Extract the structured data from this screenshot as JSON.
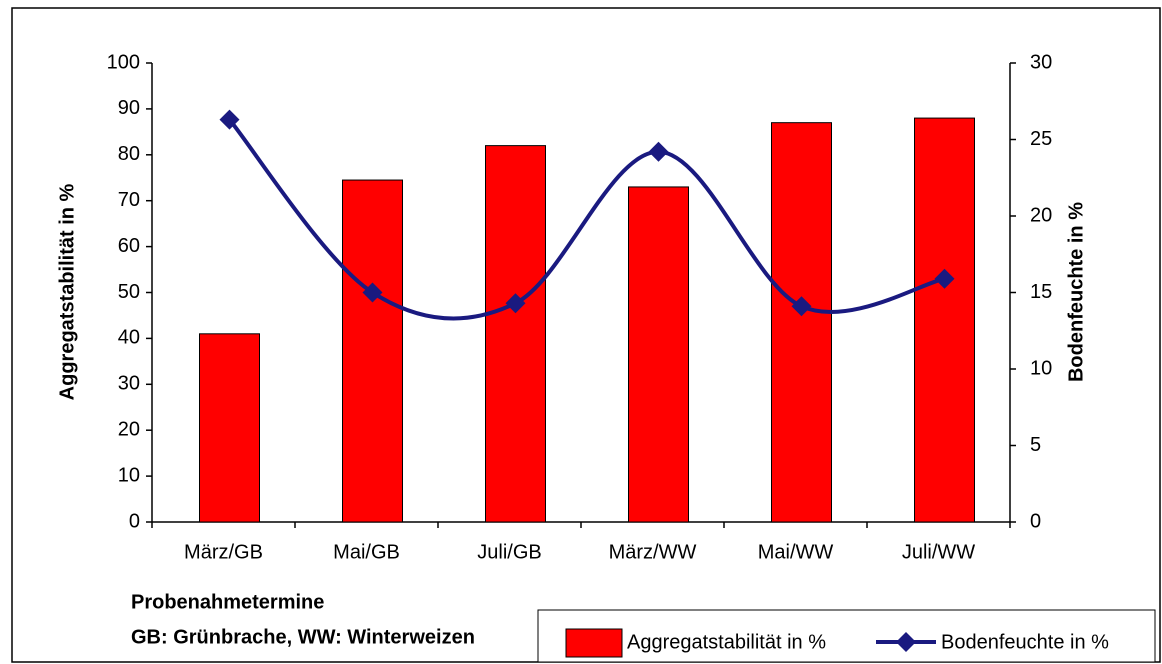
{
  "chart_data": {
    "type": "bar",
    "categories": [
      "März/GB",
      "Mai/GB",
      "Juli/GB",
      "März/WW",
      "Mai/WW",
      "Juli/WW"
    ],
    "series": [
      {
        "name": "Aggregatstabilität in %",
        "type": "bar",
        "color": "#ff0000",
        "values": [
          41,
          74.5,
          82,
          73,
          87,
          88
        ]
      },
      {
        "name": "Bodenfeuchte in %",
        "type": "line",
        "axis": "y2",
        "color": "#1a1a80",
        "values": [
          26.3,
          15.0,
          14.3,
          24.2,
          14.1,
          15.9
        ]
      }
    ],
    "ylabel": "Aggregatstabilität in %",
    "y2label": "Bodenfeuchte in %",
    "xlabel": "Probenahmetermine",
    "note": "GB: Grünbrache, WW: Winterweizen",
    "ylim": [
      0,
      100
    ],
    "yticks": [
      0,
      10,
      20,
      30,
      40,
      50,
      60,
      70,
      80,
      90,
      100
    ],
    "y2lim": [
      0,
      30
    ],
    "y2ticks": [
      0,
      5,
      10,
      15,
      20,
      25,
      30
    ],
    "legend": "bottom-right"
  }
}
